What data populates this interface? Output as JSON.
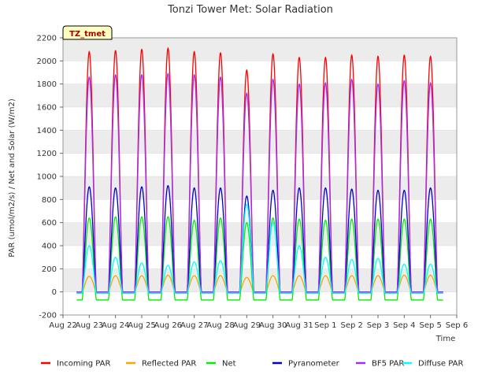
{
  "chart_data": {
    "type": "line",
    "title": "Tonzi Tower Met: Solar Radiation",
    "xlabel": "Time",
    "ylabel": "PAR (umol/m2/s) / Net and Solar (W/m2)",
    "ylim": [
      -200,
      2200
    ],
    "yticks": [
      -200,
      0,
      200,
      400,
      600,
      800,
      1000,
      1200,
      1400,
      1600,
      1800,
      2000,
      2200
    ],
    "xlim": [
      0,
      15
    ],
    "xticks": [
      0,
      1,
      2,
      3,
      4,
      5,
      6,
      7,
      8,
      9,
      10,
      11,
      12,
      13,
      14,
      15
    ],
    "xtick_labels": [
      "Aug 22",
      "Aug 23",
      "Aug 24",
      "Aug 25",
      "Aug 26",
      "Aug 27",
      "Aug 28",
      "Aug 29",
      "Aug 30",
      "Aug 31",
      "Sep 1",
      "Sep 2",
      "Sep 3",
      "Sep 4",
      "Sep 5",
      "Sep 6"
    ],
    "grid": "horizontal bands",
    "legend_placement": "bottom",
    "annotation": "TZ_tmet",
    "day_centers": [
      1.0,
      2.0,
      3.0,
      4.0,
      5.0,
      6.0,
      7.0,
      8.0,
      9.0,
      10.0,
      11.0,
      12.0,
      13.0,
      14.0
    ],
    "day_halfwidth": 0.27,
    "series": [
      {
        "name": "Incoming PAR",
        "color": "#ff0000",
        "night": 0,
        "peaks": [
          2080,
          2090,
          2100,
          2110,
          2080,
          2070,
          1920,
          2060,
          2030,
          2030,
          2050,
          2040,
          2050,
          2040
        ]
      },
      {
        "name": "Reflected PAR",
        "color": "#ffa500",
        "night": 0,
        "peaks": [
          135,
          140,
          140,
          145,
          140,
          140,
          125,
          140,
          140,
          140,
          140,
          140,
          145,
          145
        ]
      },
      {
        "name": "Net",
        "color": "#00ee00",
        "night": -70,
        "peaks": [
          640,
          650,
          650,
          650,
          620,
          640,
          600,
          640,
          630,
          620,
          630,
          630,
          630,
          630
        ]
      },
      {
        "name": "Pyranometer",
        "color": "#0000cc",
        "night": -10,
        "peaks": [
          910,
          900,
          910,
          920,
          900,
          900,
          830,
          880,
          900,
          900,
          890,
          880,
          880,
          900
        ]
      },
      {
        "name": "BF5 PAR",
        "color": "#9b30ff",
        "night": 0,
        "peaks": [
          1860,
          1880,
          1880,
          1890,
          1880,
          1860,
          1720,
          1840,
          1800,
          1810,
          1840,
          1800,
          1830,
          1810
        ]
      },
      {
        "name": "Diffuse PAR",
        "color": "#00ffff",
        "night": -10,
        "peaks": [
          400,
          300,
          250,
          230,
          260,
          270,
          760,
          600,
          400,
          300,
          280,
          290,
          240,
          240
        ]
      }
    ]
  }
}
